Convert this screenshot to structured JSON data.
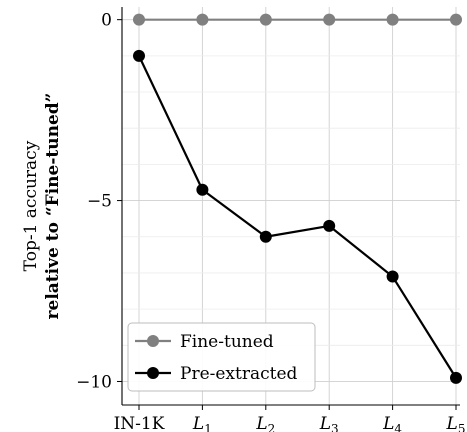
{
  "chart_data": {
    "type": "line",
    "title": "",
    "ylabel_line1": "Top-1 accuracy",
    "ylabel_line2": "relative to “Fine-tuned”",
    "xlabel": "",
    "categories": [
      "IN-1K",
      "L1",
      "L2",
      "L3",
      "L4",
      "L5"
    ],
    "category_subscripts": [
      "",
      "1",
      "2",
      "3",
      "4",
      "5"
    ],
    "yticks": [
      0,
      -5,
      -10
    ],
    "ytick_labels": [
      "0",
      "−5",
      "−10"
    ],
    "ylim": [
      -10.65,
      0.35
    ],
    "grid": true,
    "legend_position": "bottom-left",
    "series": [
      {
        "name": "Fine-tuned",
        "color": "#808080",
        "values": [
          0,
          0,
          0,
          0,
          0,
          0
        ]
      },
      {
        "name": "Pre-extracted",
        "color": "#000000",
        "values": [
          -1.0,
          -4.7,
          -6.0,
          -5.7,
          -7.1,
          -9.9
        ]
      }
    ]
  }
}
